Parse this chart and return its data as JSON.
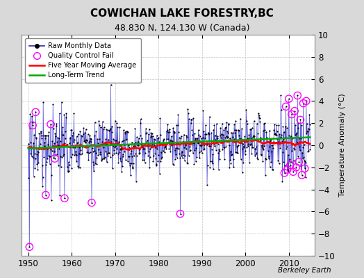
{
  "title": "COWICHAN LAKE FORESTRY,BC",
  "subtitle": "48.830 N, 124.130 W (Canada)",
  "ylabel": "Temperature Anomaly (°C)",
  "watermark": "Berkeley Earth",
  "ylim": [
    -10,
    10
  ],
  "xlim": [
    1948.5,
    2016.0
  ],
  "xticks": [
    1950,
    1960,
    1970,
    1980,
    1990,
    2000,
    2010
  ],
  "yticks": [
    -10,
    -8,
    -6,
    -4,
    -2,
    0,
    2,
    4,
    6,
    8,
    10
  ],
  "outer_bg_color": "#d9d9d9",
  "plot_bg_color": "#ffffff",
  "raw_color": "#3333cc",
  "dot_color": "#000000",
  "qc_color": "#ff00ff",
  "moving_avg_color": "#ff0000",
  "trend_color": "#00aa00",
  "legend_loc": "upper left"
}
